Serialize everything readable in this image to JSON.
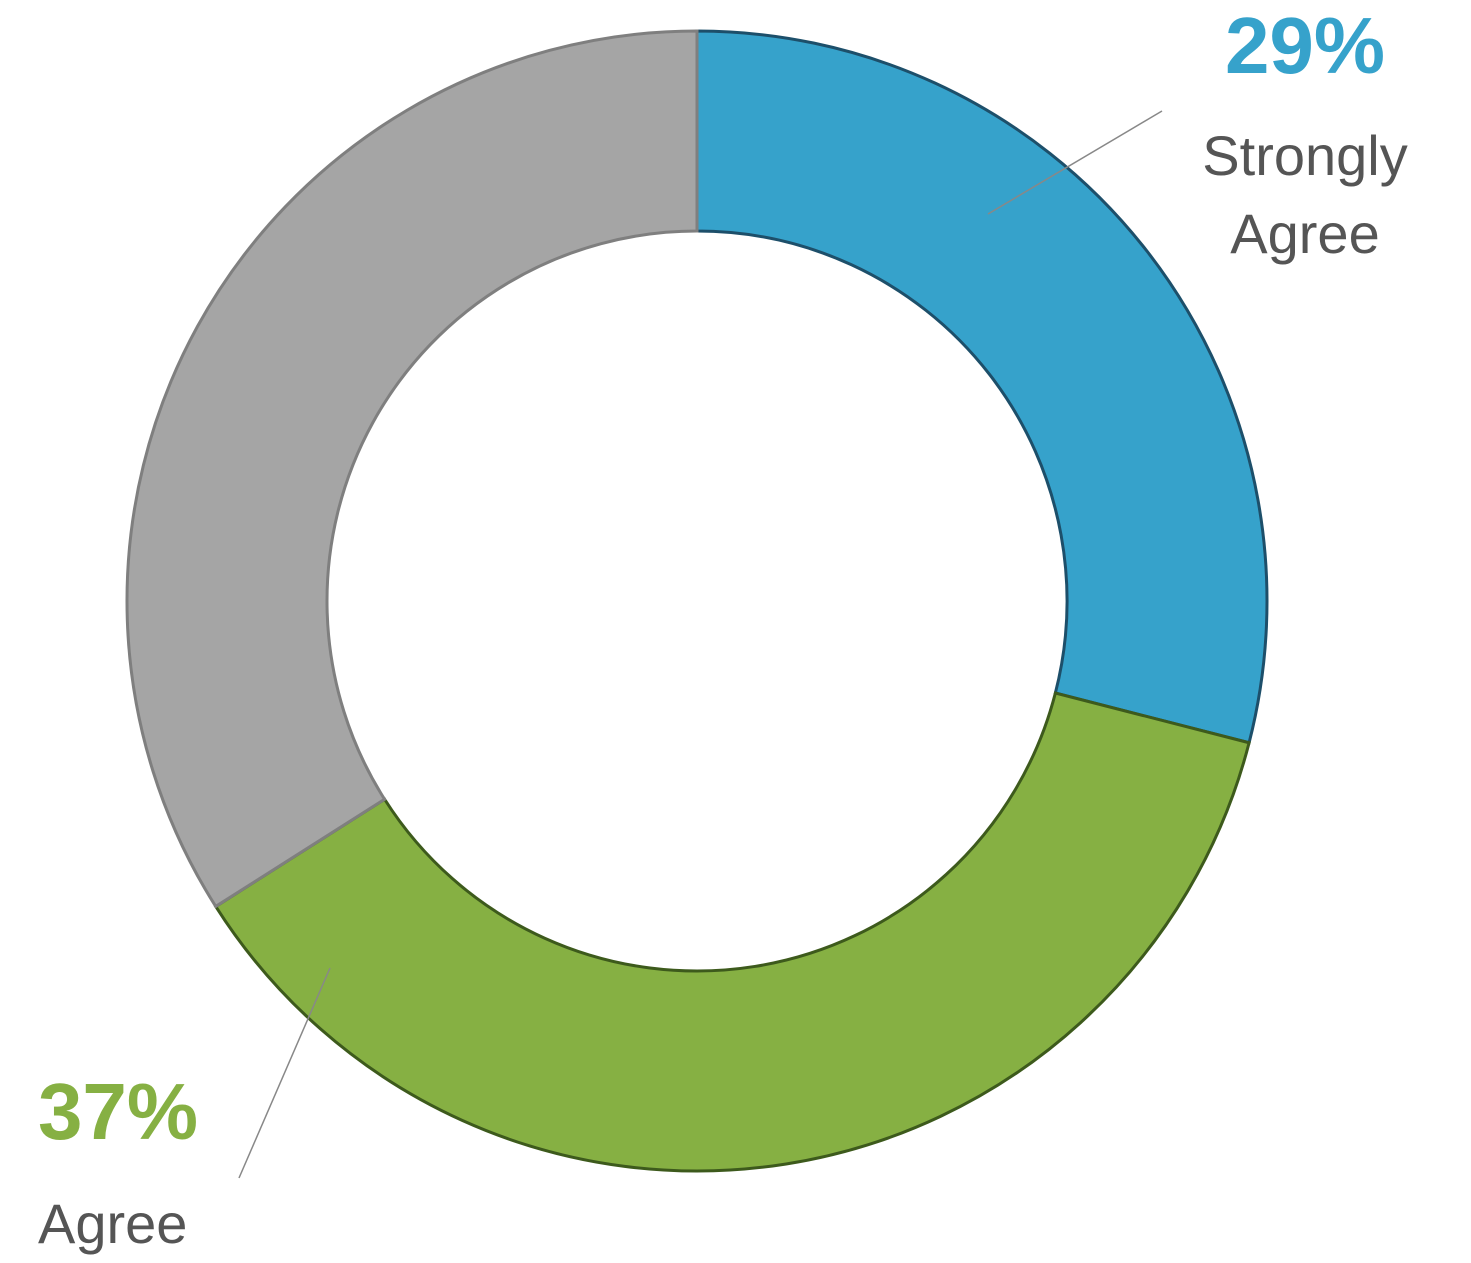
{
  "chart_data": {
    "type": "donut",
    "categories": [
      "Strongly Agree",
      "Agree",
      null
    ],
    "values": [
      29,
      37,
      34
    ],
    "value_labels": [
      "29%",
      "37%",
      null
    ],
    "colors": [
      "#36a2cb",
      "#86b043",
      "#a5a5a5"
    ]
  }
}
